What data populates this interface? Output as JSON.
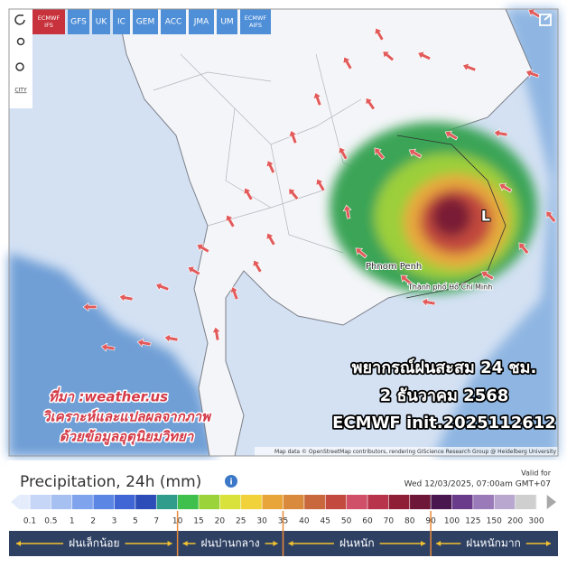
{
  "toolbar": {
    "models": [
      "ECMWF IFS",
      "GFS",
      "UK",
      "IC",
      "GEM",
      "ACC",
      "JMA",
      "UM",
      "ECMWF AIFS"
    ],
    "city_tool": "CITY"
  },
  "map": {
    "labels": {
      "phnom_penh": "Phnom Penh",
      "hcmc": "Thành phố Hồ Chí Minh",
      "low": "L"
    },
    "source_note": [
      "ที่มา :weather.us",
      "วิเคราะห์และแปลผลจากภาพ",
      "ด้วยข้อมูลอุตุนิยมวิทยา"
    ],
    "forecast": [
      "พยากรณ์ฝนสะสม 24 ชม.",
      "2 ธันวาคม 2568",
      "ECMWF init.2025112612"
    ],
    "attribution": "Map data © OpenStreetMap contributors, rendering GIScience Research Group @ Heidelberg University"
  },
  "legend": {
    "title": "Precipitation, 24h (mm)",
    "valid_for": "Valid for",
    "valid_time": "Wed 12/03/2025, 07:00am GMT+07",
    "scale": [
      "0.1",
      "0.5",
      "1",
      "2",
      "3",
      "5",
      "7",
      "10",
      "15",
      "20",
      "25",
      "30",
      "35",
      "40",
      "45",
      "50",
      "60",
      "70",
      "80",
      "90",
      "100",
      "125",
      "150",
      "200",
      "300"
    ],
    "colors": [
      "#e4ecfb",
      "#c6d6f7",
      "#a7c0f2",
      "#7fa3ec",
      "#5b86e3",
      "#3f66d4",
      "#2c4cb8",
      "#2f9c8c",
      "#3fbf4c",
      "#9ad43a",
      "#d8e23a",
      "#f2d23a",
      "#e8a53a",
      "#d98a3c",
      "#c9683c",
      "#c24a3e",
      "#d0506a",
      "#b8344a",
      "#8e1f36",
      "#6e1738",
      "#4a1650",
      "#6a3b8a",
      "#9a7ab8",
      "#b9a7cf",
      "#cfcfcf",
      "#a8a8a8"
    ],
    "bands": [
      "ฝนเล็กน้อย",
      "ฝนปานกลาง",
      "ฝนหนัก",
      "ฝนหนักมาก"
    ]
  }
}
